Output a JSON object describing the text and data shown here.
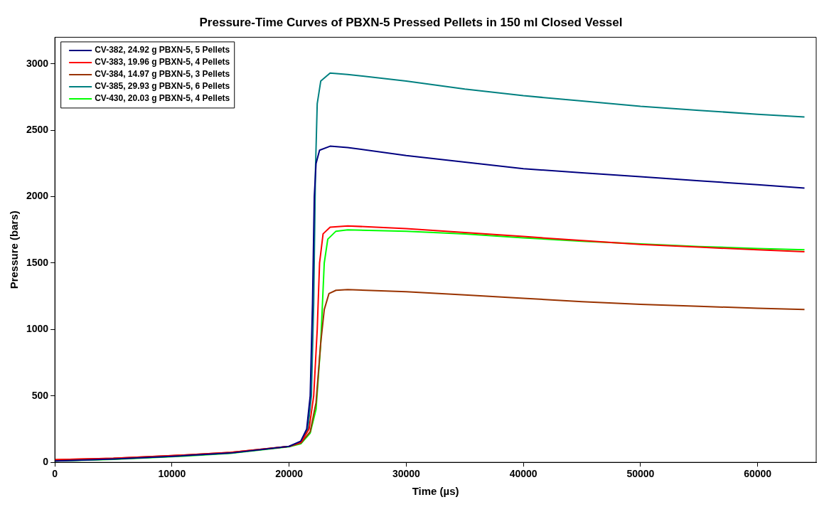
{
  "chart_data": {
    "type": "line",
    "title": "Pressure-Time Curves of PBXN-5 Pressed Pellets in 150 ml Closed Vessel",
    "xlabel": "Time (µs)",
    "ylabel": "Pressure (bars)",
    "xlim": [
      0,
      65000
    ],
    "ylim": [
      0,
      3200
    ],
    "xticks": [
      0,
      10000,
      20000,
      30000,
      40000,
      50000,
      60000
    ],
    "yticks": [
      0,
      500,
      1000,
      1500,
      2000,
      2500,
      3000
    ],
    "grid": false,
    "legend": "top left",
    "marker": "none",
    "line_style": "solid",
    "series": [
      {
        "name": "CV-382, 24.92 g PBXN-5, 5 Pellets",
        "color": "#000080",
        "x": [
          0,
          5000,
          10000,
          15000,
          20000,
          21000,
          21500,
          21800,
          22000,
          22150,
          22300,
          22600,
          23500,
          25000,
          30000,
          35000,
          40000,
          45000,
          50000,
          55000,
          60000,
          64000
        ],
        "values": [
          10,
          25,
          45,
          70,
          120,
          160,
          250,
          500,
          1200,
          2000,
          2250,
          2350,
          2380,
          2370,
          2310,
          2260,
          2210,
          2180,
          2150,
          2120,
          2090,
          2065
        ]
      },
      {
        "name": "CV-383, 19.96 g PBXN-5, 4 Pellets",
        "color": "#ff0000",
        "x": [
          0,
          5000,
          10000,
          15000,
          20000,
          21000,
          21700,
          22100,
          22400,
          22600,
          22900,
          23500,
          25000,
          30000,
          35000,
          40000,
          45000,
          50000,
          55000,
          60000,
          64000
        ],
        "values": [
          20,
          30,
          50,
          75,
          120,
          150,
          250,
          500,
          1000,
          1500,
          1720,
          1770,
          1780,
          1760,
          1730,
          1700,
          1670,
          1640,
          1620,
          1600,
          1585
        ]
      },
      {
        "name": "CV-384, 14.97 g PBXN-5, 3 Pellets",
        "color": "#993300",
        "x": [
          0,
          5000,
          10000,
          15000,
          20000,
          21000,
          21800,
          22300,
          22700,
          23000,
          23400,
          24000,
          25000,
          30000,
          35000,
          40000,
          45000,
          50000,
          55000,
          60000,
          64000
        ],
        "values": [
          20,
          30,
          50,
          75,
          120,
          145,
          230,
          450,
          900,
          1150,
          1270,
          1295,
          1300,
          1285,
          1260,
          1235,
          1210,
          1190,
          1175,
          1160,
          1150
        ]
      },
      {
        "name": "CV-385, 29.93 g PBXN-5, 6 Pellets",
        "color": "#008080",
        "x": [
          0,
          5000,
          10000,
          15000,
          20000,
          21000,
          21600,
          21900,
          22100,
          22250,
          22400,
          22700,
          23500,
          25000,
          30000,
          35000,
          40000,
          45000,
          50000,
          55000,
          60000,
          64000
        ],
        "values": [
          10,
          25,
          45,
          70,
          120,
          155,
          250,
          500,
          1200,
          2200,
          2700,
          2870,
          2930,
          2920,
          2870,
          2810,
          2760,
          2720,
          2680,
          2650,
          2620,
          2600
        ]
      },
      {
        "name": "CV-430, 20.03 g PBXN-5, 4 Pellets",
        "color": "#00ff00",
        "x": [
          0,
          5000,
          10000,
          15000,
          20000,
          21000,
          21800,
          22300,
          22700,
          23000,
          23300,
          24000,
          25000,
          30000,
          35000,
          40000,
          45000,
          50000,
          55000,
          60000,
          64000
        ],
        "values": [
          10,
          22,
          42,
          68,
          118,
          140,
          220,
          400,
          900,
          1500,
          1680,
          1740,
          1750,
          1740,
          1720,
          1690,
          1665,
          1645,
          1625,
          1610,
          1600
        ]
      }
    ]
  }
}
